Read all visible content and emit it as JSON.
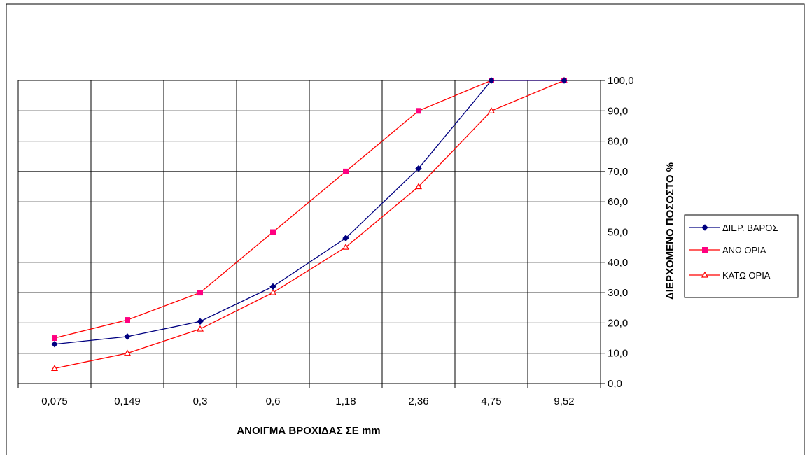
{
  "chart_data": {
    "type": "line",
    "categories": [
      "0,075",
      "0,149",
      "0,3",
      "0,6",
      "1,18",
      "2,36",
      "4,75",
      "9,52"
    ],
    "y_ticks": [
      "0,0",
      "10,0",
      "20,0",
      "30,0",
      "40,0",
      "50,0",
      "60,0",
      "70,0",
      "80,0",
      "90,0",
      "100,0"
    ],
    "ylim": [
      0,
      100
    ],
    "xlabel": "ΑΝΟΙΓΜΑ ΒΡΟΧΙΔΑΣ ΣΕ mm",
    "ylabel": "ΔΙΕΡΧΟΜΕΝΟ ΠΟΣΟΣΤΟ %",
    "grid": true,
    "legend_position": "right",
    "series": [
      {
        "name": "ΔΙΕΡ. ΒΑΡΟΣ",
        "color": "#000080",
        "marker": "diamond",
        "values": [
          13,
          15.5,
          20.5,
          32,
          48,
          71,
          100,
          100
        ]
      },
      {
        "name": "ΑΝΩ ΟΡΙΑ",
        "color": "#ff0000",
        "marker_color": "#ff0080",
        "marker": "square",
        "values": [
          15,
          21,
          30,
          50,
          70,
          90,
          100,
          100
        ]
      },
      {
        "name": "ΚΑΤΩ ΟΡΙΑ",
        "color": "#ff0000",
        "marker": "triangle",
        "values": [
          5,
          10,
          18,
          30,
          45,
          65,
          90,
          100
        ]
      }
    ]
  }
}
